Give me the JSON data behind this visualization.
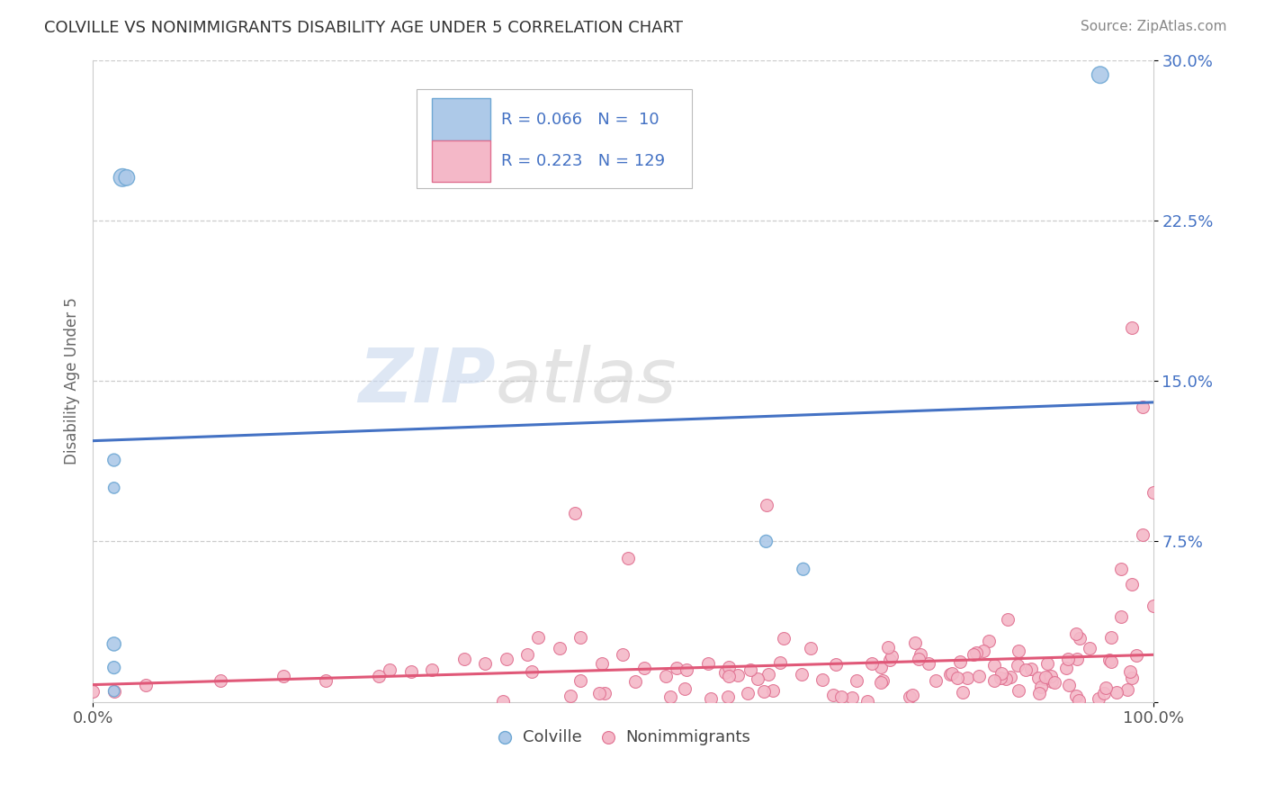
{
  "title": "COLVILLE VS NONIMMIGRANTS DISABILITY AGE UNDER 5 CORRELATION CHART",
  "source_text": "Source: ZipAtlas.com",
  "ylabel": "Disability Age Under 5",
  "watermark_zip": "ZIP",
  "watermark_atlas": "atlas",
  "xlim": [
    0.0,
    1.0
  ],
  "ylim": [
    0.0,
    0.3
  ],
  "ytick_vals": [
    0.0,
    0.075,
    0.15,
    0.225,
    0.3
  ],
  "ytick_labels": [
    "",
    "7.5%",
    "15.0%",
    "22.5%",
    "30.0%"
  ],
  "colville_color": "#adc9e8",
  "colville_edge_color": "#6fa8d4",
  "nonimm_color": "#f4b8c8",
  "nonimm_edge_color": "#e07090",
  "trend_blue": "#4472c4",
  "trend_pink": "#e05878",
  "legend_text_color": "#4472c4",
  "grid_color": "#cccccc",
  "bg_color": "#ffffff",
  "colville_x": [
    0.028,
    0.032,
    0.02,
    0.02,
    0.02,
    0.02,
    0.02,
    0.635,
    0.95,
    0.67
  ],
  "colville_y": [
    0.245,
    0.245,
    0.113,
    0.1,
    0.027,
    0.016,
    0.005,
    0.075,
    0.293,
    0.062
  ],
  "colville_s": [
    200,
    160,
    100,
    80,
    120,
    100,
    80,
    100,
    180,
    100
  ],
  "blue_line_x0": 0.0,
  "blue_line_y0": 0.122,
  "blue_line_x1": 1.0,
  "blue_line_y1": 0.14,
  "pink_line_x0": 0.0,
  "pink_line_y0": 0.008,
  "pink_line_x1": 1.0,
  "pink_line_y1": 0.022
}
